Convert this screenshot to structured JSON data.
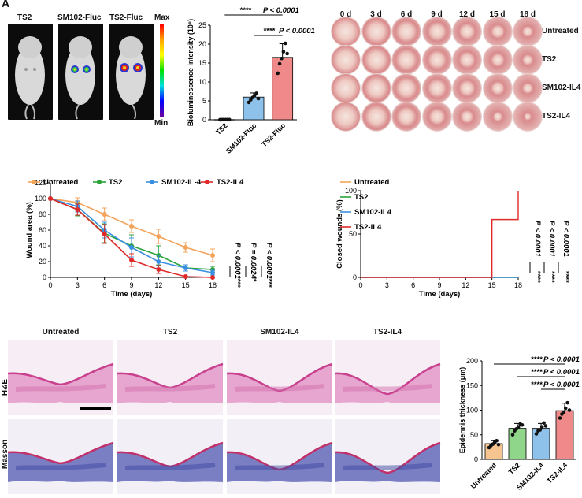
{
  "panel_letter": "A",
  "imaging": {
    "mice": [
      "TS2",
      "SM102-Fluc",
      "TS2-Fluc"
    ],
    "scale_max": "Max",
    "scale_min": "Min"
  },
  "photos": {
    "days": [
      "0 d",
      "3 d",
      "6 d",
      "9 d",
      "12 d",
      "15 d",
      "18 d"
    ],
    "groups": [
      "Untreated",
      "TS2",
      "SM102-IL4",
      "TS2-IL4"
    ]
  },
  "histology": {
    "groups": [
      "Untreated",
      "TS2",
      "SM102-IL4",
      "TS2-IL4"
    ],
    "stains": [
      "H&E",
      "Masson"
    ]
  },
  "chart_data": [
    {
      "type": "bar",
      "title": "",
      "ylabel": "Bioluminescence intensity (10⁸)",
      "ylim": [
        0,
        25
      ],
      "yticks": [
        "0",
        "5",
        "10",
        "15",
        "20",
        "25"
      ],
      "categories": [
        "TS2",
        "SM102-Fluc",
        "TS2-Fluc"
      ],
      "values": [
        0.05,
        6.0,
        16.5
      ],
      "errors": [
        0.05,
        1.1,
        3.6
      ],
      "colors": [
        "#ffffff",
        "#8ec2ea",
        "#f08a8a"
      ],
      "points": [
        [
          0.02,
          0.03,
          0.04,
          0.05,
          0.04,
          0.03
        ],
        [
          4.6,
          5.3,
          5.9,
          6.4,
          7.0,
          5.6
        ],
        [
          12.3,
          14.8,
          16.2,
          18.0,
          20.2,
          17.5
        ]
      ],
      "significance": [
        {
          "stars": "****",
          "p": "P < 0.0001"
        },
        {
          "stars": "****",
          "p": "P < 0.0001"
        }
      ]
    },
    {
      "type": "line",
      "xlabel": "Time (days)",
      "ylabel": "Wound area (%)",
      "x": [
        0,
        3,
        6,
        9,
        12,
        15,
        18
      ],
      "xticks": [
        "0",
        "3",
        "6",
        "9",
        "12",
        "15",
        "18"
      ],
      "ylim": [
        0,
        120
      ],
      "yticks": [
        "0",
        "20",
        "40",
        "60",
        "80",
        "100",
        "120"
      ],
      "series": [
        {
          "name": "Untreated",
          "color": "#f4a35a",
          "values": [
            100,
            95,
            80,
            65,
            52,
            38,
            28
          ],
          "errors": [
            0,
            6,
            8,
            8,
            9,
            6,
            8
          ]
        },
        {
          "name": "TS2",
          "color": "#2aa33a",
          "values": [
            100,
            86,
            56,
            40,
            28,
            12,
            10
          ],
          "errors": [
            0,
            8,
            12,
            14,
            12,
            4,
            4
          ]
        },
        {
          "name": "SM102-IL-4",
          "color": "#3a8fe0",
          "values": [
            100,
            90,
            60,
            38,
            20,
            12,
            6
          ],
          "errors": [
            0,
            7,
            10,
            12,
            8,
            4,
            3
          ]
        },
        {
          "name": "TS2-IL4",
          "color": "#e02a2a",
          "values": [
            100,
            86,
            55,
            22,
            10,
            1,
            0
          ],
          "errors": [
            0,
            7,
            12,
            8,
            5,
            1,
            0
          ]
        }
      ],
      "significance": [
        {
          "stars": "****",
          "p": "P < 0.0001"
        },
        {
          "stars": "**",
          "p": "P = 0.0024"
        },
        {
          "stars": "****",
          "p": "P < 0.0001"
        }
      ]
    },
    {
      "type": "line",
      "xlabel": "Time (days)",
      "ylabel": "Closed wounds (%)",
      "x": [
        0,
        3,
        6,
        9,
        12,
        15,
        18
      ],
      "xticks": [
        "0",
        "3",
        "6",
        "9",
        "12",
        "15",
        "18"
      ],
      "ylim": [
        0,
        100
      ],
      "yticks": [
        "0",
        "50",
        "100"
      ],
      "series": [
        {
          "name": "Untreated",
          "color": "#f4a35a",
          "values": [
            0,
            0,
            0,
            0,
            0,
            0,
            0
          ]
        },
        {
          "name": "TS2",
          "color": "#2aa33a",
          "values": [
            0,
            0,
            0,
            0,
            0,
            0,
            0
          ]
        },
        {
          "name": "SM102-IL4",
          "color": "#3a8fe0",
          "values": [
            0,
            0,
            0,
            0,
            0,
            0,
            0
          ]
        },
        {
          "name": "TS2-IL4",
          "color": "#e02a2a",
          "values": [
            0,
            0,
            0,
            0,
            0,
            66.7,
            100
          ]
        }
      ],
      "significance": [
        {
          "stars": "****",
          "p": "P < 0.0001"
        },
        {
          "stars": "****",
          "p": "P < 0.0001"
        },
        {
          "stars": "****",
          "p": "P < 0.0001"
        }
      ]
    },
    {
      "type": "bar",
      "ylabel": "Epidermis thickness (μm)",
      "ylim": [
        0,
        200
      ],
      "yticks": [
        "0",
        "50",
        "100",
        "150",
        "200"
      ],
      "categories": [
        "Untreated",
        "TS2",
        "SM102-IL4",
        "TS2-IL4"
      ],
      "values": [
        32,
        63,
        63,
        99
      ],
      "errors": [
        6,
        10,
        10,
        15
      ],
      "colors": [
        "#f6c48e",
        "#8fd68a",
        "#8ec2ea",
        "#f08a8a"
      ],
      "points": [
        [
          24,
          28,
          31,
          35,
          38,
          30
        ],
        [
          50,
          58,
          62,
          66,
          72,
          70
        ],
        [
          52,
          58,
          60,
          66,
          74,
          68
        ],
        [
          84,
          92,
          96,
          104,
          115,
          100
        ]
      ],
      "significance": [
        {
          "stars": "****",
          "p": "P < 0.0001"
        },
        {
          "stars": "****",
          "p": "P < 0.0001"
        },
        {
          "stars": "****",
          "p": "P < 0.0001"
        }
      ]
    }
  ]
}
